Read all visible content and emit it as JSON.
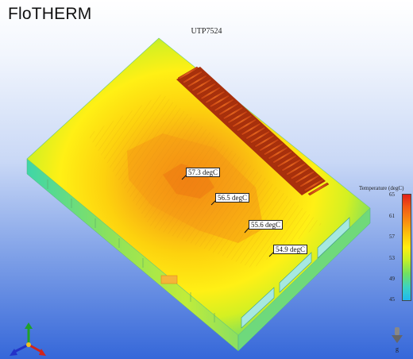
{
  "app": {
    "title": "FloTHERM"
  },
  "model": {
    "name": "UTP7524"
  },
  "probes": [
    {
      "value": "57.3 degC"
    },
    {
      "value": "56.5 degC"
    },
    {
      "value": "55.6 degC"
    },
    {
      "value": "54.9 degC"
    }
  ],
  "legend": {
    "title": "Temperature (degC)",
    "ticks": [
      "65",
      "61",
      "57",
      "53",
      "49",
      "45"
    ],
    "colors": {
      "hot": "#e0201a",
      "cold": "#20b8ee"
    }
  },
  "gravity": {
    "label": "g"
  },
  "icons": {
    "gravity": "gravity-arrow-icon",
    "axes": "xyz-axis-icon"
  }
}
